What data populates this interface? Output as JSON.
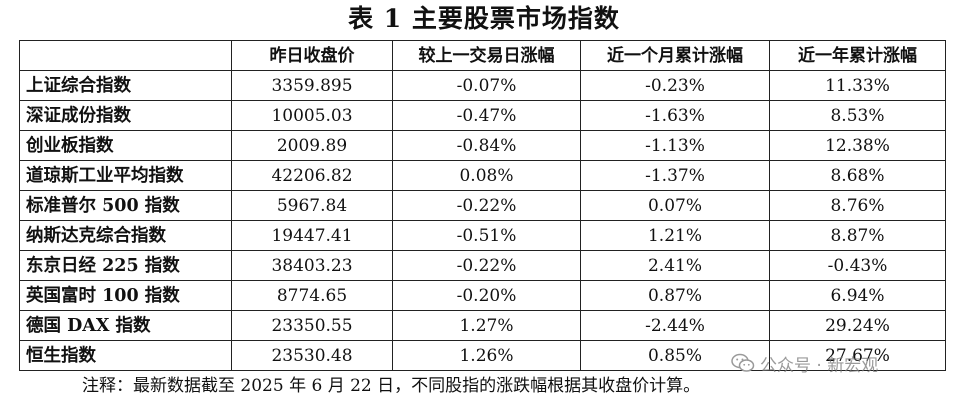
{
  "title": "表 1 主要股票市场指数",
  "table": {
    "headers": [
      "",
      "昨日收盘价",
      "较上一交易日涨幅",
      "近一个月累计涨幅",
      "近一年累计涨幅"
    ],
    "rows": [
      [
        "上证综合指数",
        "3359.895",
        "-0.07%",
        "-0.23%",
        "11.33%"
      ],
      [
        "深证成份指数",
        "10005.03",
        "-0.47%",
        "-1.63%",
        "8.53%"
      ],
      [
        "创业板指数",
        "2009.89",
        "-0.84%",
        "-1.13%",
        "12.38%"
      ],
      [
        "道琼斯工业平均指数",
        "42206.82",
        "0.08%",
        "-1.37%",
        "8.68%"
      ],
      [
        "标准普尔 500 指数",
        "5967.84",
        "-0.22%",
        "0.07%",
        "8.76%"
      ],
      [
        "纳斯达克综合指数",
        "19447.41",
        "-0.51%",
        "1.21%",
        "8.87%"
      ],
      [
        "东京日经 225 指数",
        "38403.23",
        "-0.22%",
        "2.41%",
        "-0.43%"
      ],
      [
        "英国富时 100 指数",
        "8774.65",
        "-0.20%",
        "0.87%",
        "6.94%"
      ],
      [
        "德国 DAX 指数",
        "23350.55",
        "1.27%",
        "-2.44%",
        "29.24%"
      ],
      [
        "恒生指数",
        "23530.48",
        "1.26%",
        "0.85%",
        "27.67%"
      ]
    ]
  },
  "footnote": "注释：最新数据截至 2025 年 6 月 22 日，不同股指的涨跌幅根据其收盘价计算。",
  "watermark": {
    "text": "公众号 · 新宏观",
    "icon": "wechat-icon",
    "color": "#8a8a8a"
  }
}
